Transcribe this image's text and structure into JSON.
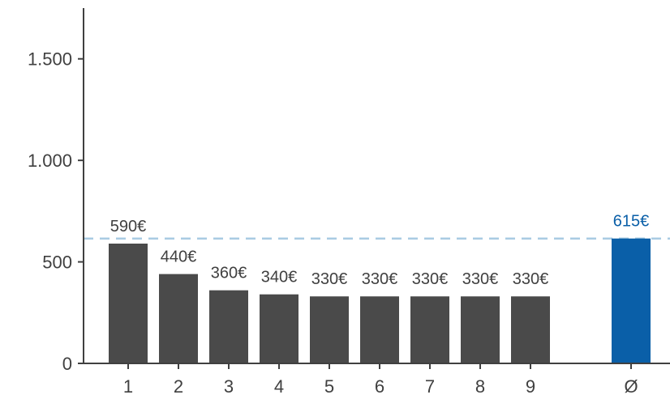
{
  "chart_data": {
    "type": "bar",
    "title": "",
    "xlabel": "",
    "ylabel": "",
    "ylim": [
      0,
      1750
    ],
    "yticks": [
      0,
      500,
      1000,
      1500
    ],
    "ytick_labels": [
      "0",
      "500",
      "1.000",
      "1.500"
    ],
    "categories": [
      "1",
      "2",
      "3",
      "4",
      "5",
      "6",
      "7",
      "8",
      "9",
      "Ø"
    ],
    "values": [
      590,
      440,
      360,
      340,
      330,
      330,
      330,
      330,
      330,
      615
    ],
    "data_labels": [
      "590€",
      "440€",
      "360€",
      "340€",
      "330€",
      "330€",
      "330€",
      "330€",
      "330€",
      "615€"
    ],
    "highlight_index": 9,
    "reference_line": 615,
    "colors": {
      "bar": "#4a4a4a",
      "highlight": "#0a5fa8",
      "highlight_label": "#0a5fa8",
      "reference_line": "#a9cbe3",
      "axis": "#404040",
      "label": "#404040"
    },
    "grid": false,
    "legend": "none"
  }
}
